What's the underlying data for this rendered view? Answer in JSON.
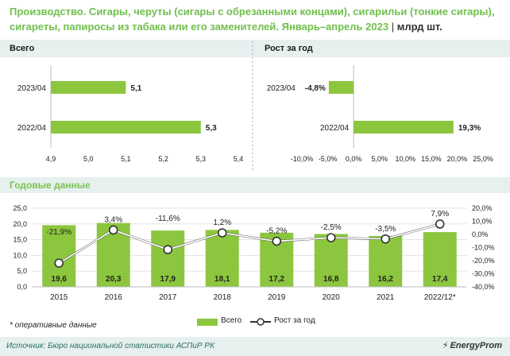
{
  "title": {
    "main": "Производство. Сигары, черуты (сигары с обрезанными концами), сигарильи (тонкие сигары), сигареты, папиросы из табака или его заменителей. Январь–апрель 2023",
    "separator": "|",
    "unit": "млрд шт."
  },
  "panels": {
    "total_label": "Всего",
    "growth_label": "Рост за год",
    "annual_label": "Годовые данные"
  },
  "colors": {
    "bar": "#8cc63f",
    "title": "#70c04c",
    "band": "#e6f0ef",
    "line": "#ffffff",
    "axis": "#bdbdbd"
  },
  "chart_data": [
    {
      "type": "bar",
      "orientation": "horizontal",
      "title": "Всего",
      "categories": [
        "2023/04",
        "2022/04"
      ],
      "values": [
        5.1,
        5.3
      ],
      "value_labels": [
        "5,1",
        "5,3"
      ],
      "xlim": [
        4.9,
        5.4
      ],
      "xticks": [
        "4,9",
        "5,0",
        "5,1",
        "5,2",
        "5,3",
        "5,4"
      ]
    },
    {
      "type": "bar",
      "orientation": "horizontal",
      "title": "Рост за год",
      "categories": [
        "2023/04",
        "2022/04"
      ],
      "values": [
        -4.8,
        19.3
      ],
      "value_labels": [
        "-4,8%",
        "19,3%"
      ],
      "xlim": [
        -10,
        25
      ],
      "xticks": [
        "-10,0%",
        "-5,0%",
        "0,0%",
        "5,0%",
        "10,0%",
        "15,0%",
        "20,0%",
        "25,0%"
      ]
    },
    {
      "type": "bar+line",
      "title": "Годовые данные",
      "categories": [
        "2015",
        "2016",
        "2017",
        "2018",
        "2019",
        "2020",
        "2021",
        "2022/12*"
      ],
      "series": [
        {
          "name": "Всего",
          "type": "bar",
          "axis": "left",
          "values": [
            19.6,
            20.3,
            17.9,
            18.1,
            17.2,
            16.8,
            16.2,
            17.4
          ],
          "value_labels": [
            "19,6",
            "20,3",
            "17,9",
            "18,1",
            "17,2",
            "16,8",
            "16,2",
            "17,4"
          ]
        },
        {
          "name": "Рост за год",
          "type": "line",
          "axis": "right",
          "values": [
            -21.9,
            3.4,
            -11.6,
            1.2,
            -5.2,
            -2.5,
            -3.5,
            7.9
          ],
          "value_labels": [
            "-21,9%",
            "3,4%",
            "-11,6%",
            "1,2%",
            "-5,2%",
            "-2,5%",
            "-3,5%",
            "7,9%"
          ]
        }
      ],
      "ylim_left": [
        0,
        25
      ],
      "yticks_left": [
        "0,0",
        "5,0",
        "10,0",
        "15,0",
        "20,0",
        "25,0"
      ],
      "ylim_right": [
        -40,
        20
      ],
      "yticks_right": [
        "-40,0%",
        "-30,0%",
        "-20,0%",
        "-10,0%",
        "0,0%",
        "10,0%",
        "20,0%"
      ],
      "legend": "bottom-center"
    }
  ],
  "footnote": "* оперативные данные",
  "source": "Источник: Бюро национальной статистики АСПиР РК",
  "brand": "EnergyProm"
}
